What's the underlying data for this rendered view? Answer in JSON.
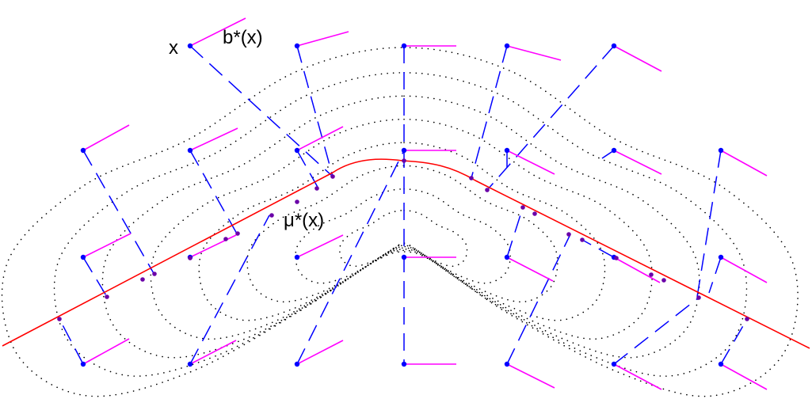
{
  "labels": {
    "point": "x",
    "direction": "b*(x)",
    "projection": "μ*(x)"
  },
  "colors": {
    "curve": "#ff0000",
    "segment": "#ff00ff",
    "dash": "#0000ff",
    "dot": "#0000ff",
    "contour": "#000000"
  }
}
